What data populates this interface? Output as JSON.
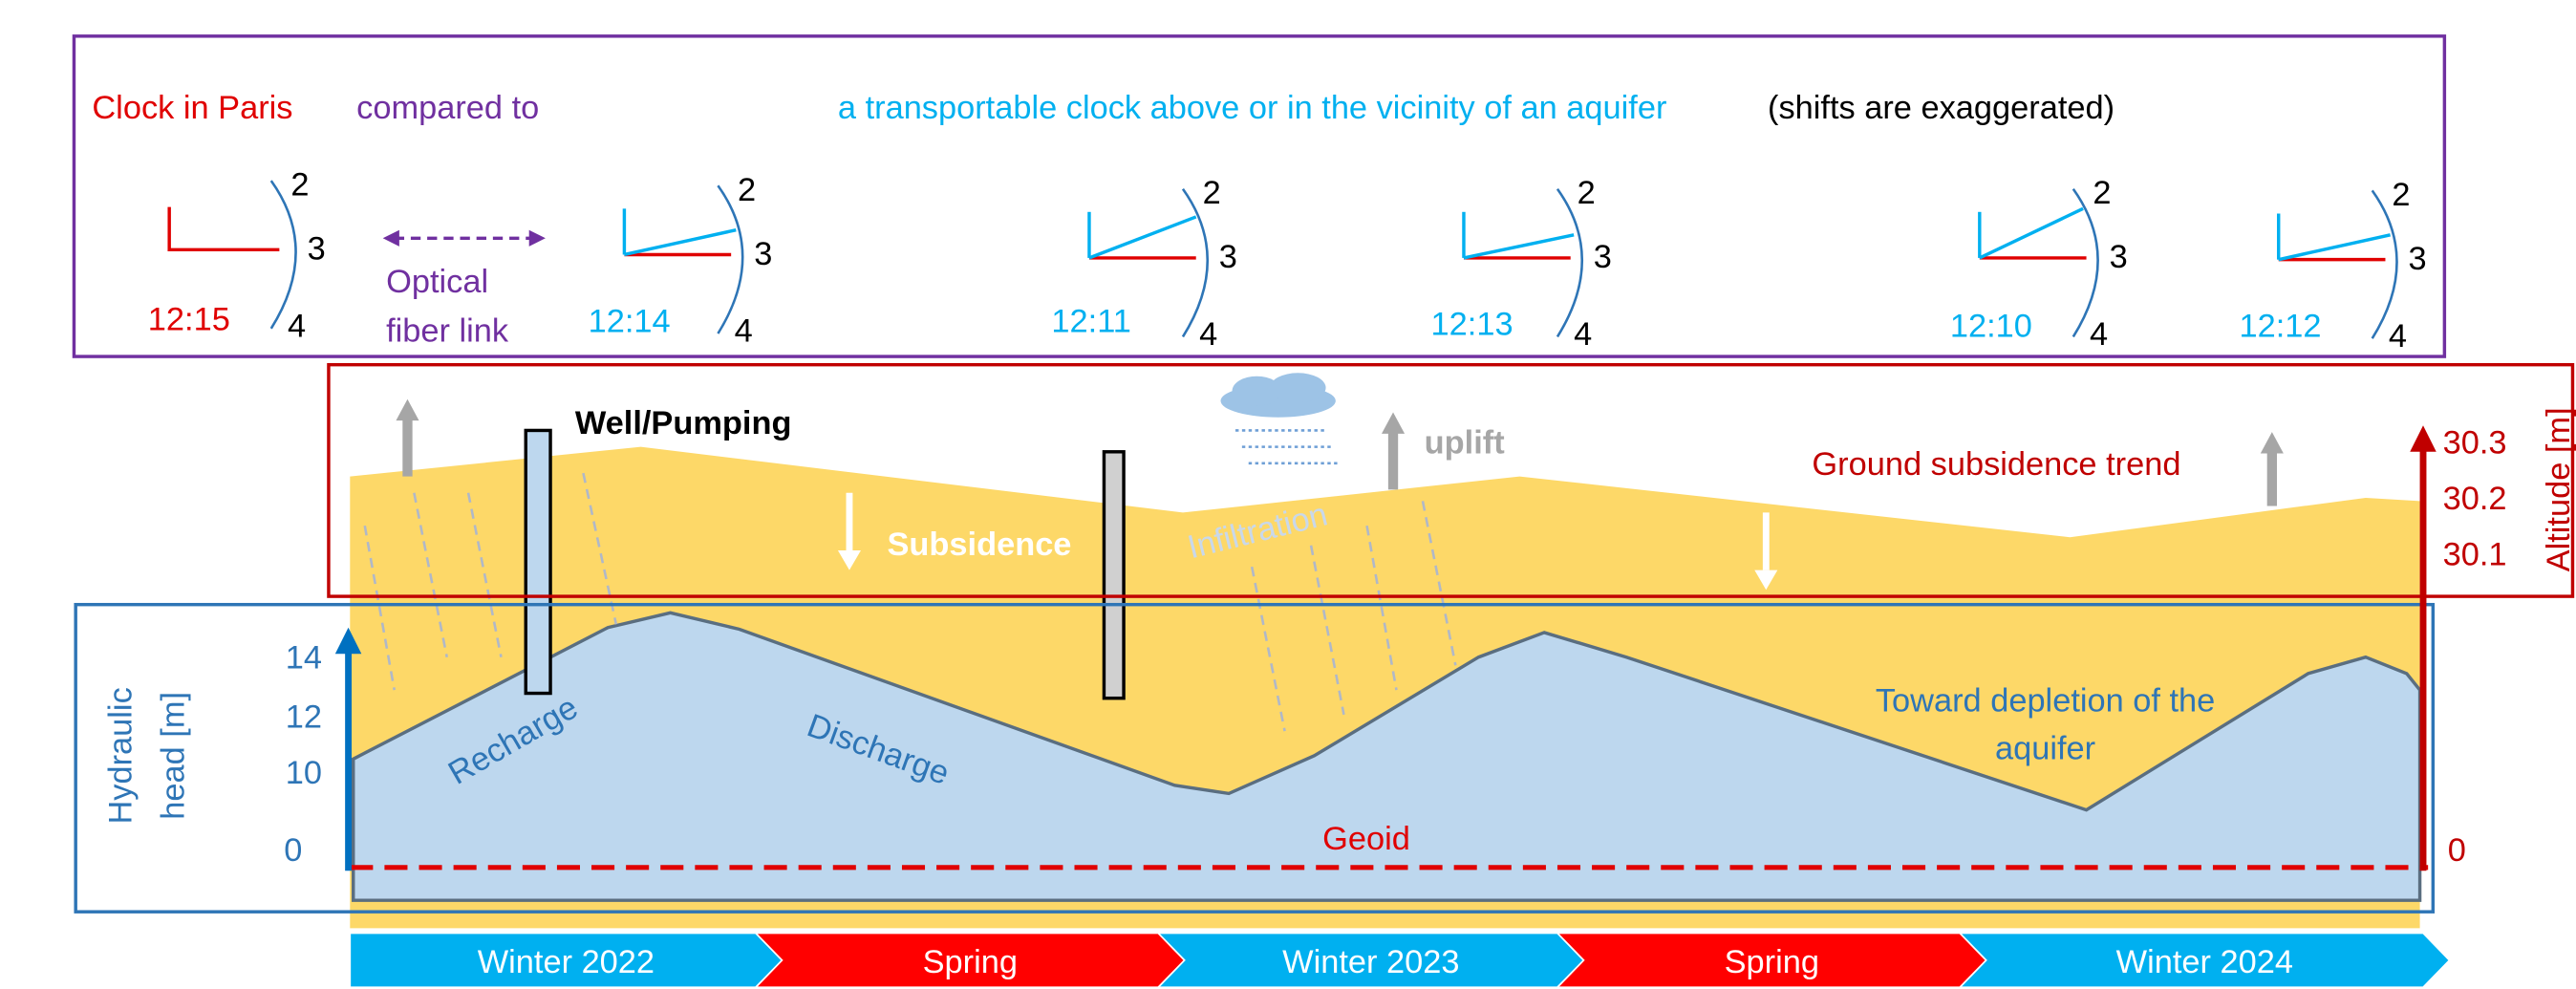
{
  "header": {
    "paris": "Clock in Paris",
    "compared": "compared to",
    "transportable": "a transportable clock above or in the vicinity of an aquifer",
    "note": "(shifts are exaggerated)"
  },
  "dial": [
    "2",
    "3",
    "4"
  ],
  "link_label": [
    "Optical",
    "fiber link"
  ],
  "clocks": [
    {
      "time": "12:15"
    },
    {
      "time": "12:14"
    },
    {
      "time": "12:11"
    },
    {
      "time": "12:13"
    },
    {
      "time": "12:10"
    },
    {
      "time": "12:12"
    }
  ],
  "labels": {
    "well": "Well/Pumping",
    "subsidence": "Subsidence",
    "uplift": "uplift",
    "infiltration": "Infiltration",
    "trend": "Ground subsidence trend",
    "recharge": "Recharge",
    "discharge": "Discharge",
    "depletion": [
      "Toward depletion of the",
      "aquifer"
    ],
    "geoid": "Geoid"
  },
  "left_axis": {
    "title": [
      "Hydraulic",
      "head [m]"
    ],
    "ticks": [
      "14",
      "12",
      "10",
      "0"
    ]
  },
  "right_axis": {
    "title": "Altitude [m]",
    "ticks": [
      "30.3",
      "30.2",
      "30.1",
      "0"
    ]
  },
  "seasons": [
    "Winter 2022",
    "Spring",
    "Winter 2023",
    "Spring",
    "Winter 2024"
  ]
}
